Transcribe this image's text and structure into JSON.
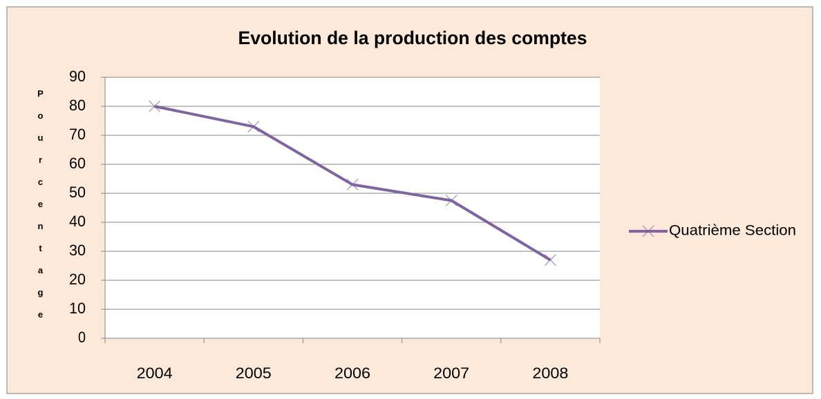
{
  "chart_data": {
    "type": "line",
    "title": "Evolution de la production des comptes",
    "y_label": "Pourcentage",
    "categories": [
      "2004",
      "2005",
      "2006",
      "2007",
      "2008"
    ],
    "series": [
      {
        "name": "Quatrième Section",
        "color": "#8064a2",
        "values": [
          80,
          73,
          53,
          47.5,
          27
        ]
      }
    ],
    "ylim": [
      0,
      90
    ],
    "yticks": [
      0,
      10,
      20,
      30,
      40,
      50,
      60,
      70,
      80,
      90
    ],
    "grid": true,
    "legend": "right"
  }
}
